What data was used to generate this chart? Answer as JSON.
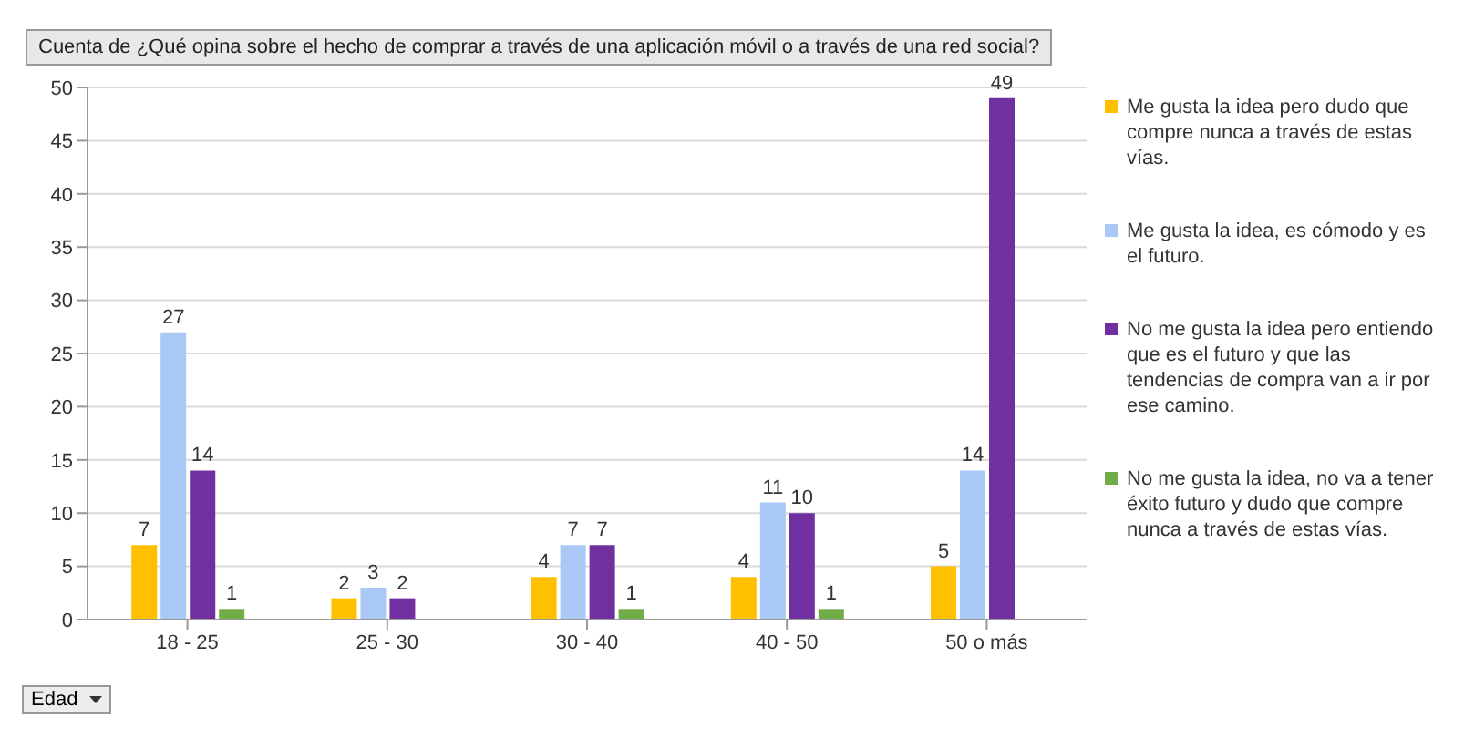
{
  "chart_data": {
    "type": "bar",
    "title": "Cuenta de ¿Qué opina sobre el hecho de comprar a través de una aplicación móvil o a través de una red social?",
    "xlabel": "Edad",
    "categories": [
      "18 - 25",
      "25 - 30",
      "30 - 40",
      "40 - 50",
      "50 o más"
    ],
    "series": [
      {
        "name": "Me gusta la idea pero dudo que compre nunca a través de estas vías.",
        "color": "#ffc000",
        "values": [
          7,
          2,
          4,
          4,
          5
        ]
      },
      {
        "name": "Me gusta la idea, es cómodo y es el futuro.",
        "color": "#a9c8f5",
        "values": [
          27,
          3,
          7,
          11,
          14
        ]
      },
      {
        "name": "No me gusta la idea pero entiendo que es el futuro y que las tendencias de compra van a ir por ese camino.",
        "color": "#7030a0",
        "values": [
          14,
          2,
          7,
          10,
          49
        ]
      },
      {
        "name": "No me gusta la idea, no va a tener éxito futuro y dudo que compre nunca a través de estas vías.",
        "color": "#70ad47",
        "values": [
          1,
          null,
          1,
          1,
          null
        ]
      }
    ],
    "ylim": [
      0,
      50
    ],
    "yticks": [
      0,
      5,
      10,
      15,
      20,
      25,
      30,
      35,
      40,
      45,
      50
    ],
    "grid": "y",
    "legend": "right",
    "data_labels": true
  }
}
